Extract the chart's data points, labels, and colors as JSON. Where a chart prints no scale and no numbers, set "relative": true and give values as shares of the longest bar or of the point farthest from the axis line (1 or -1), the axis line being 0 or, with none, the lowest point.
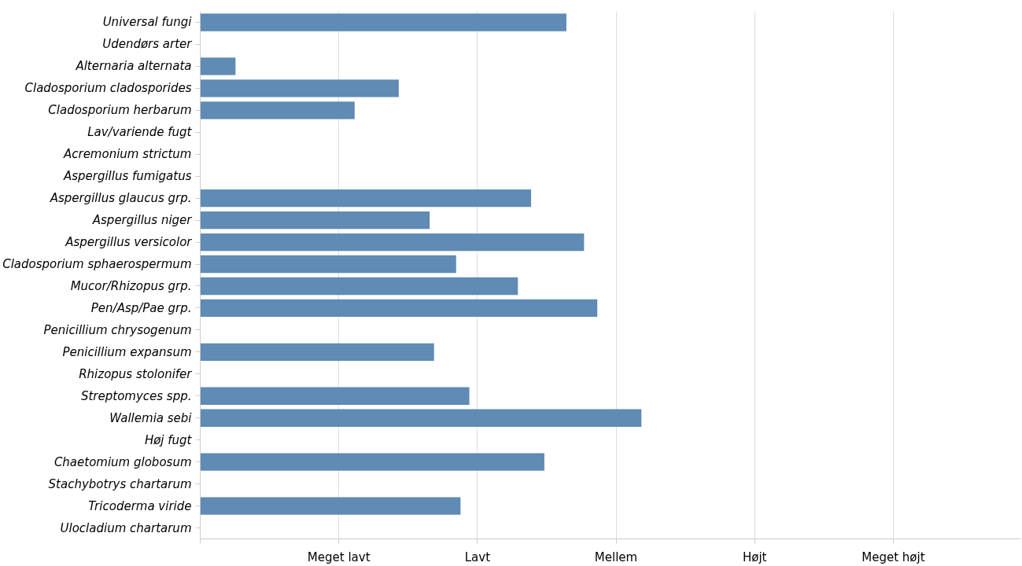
{
  "chart_data": {
    "type": "bar",
    "orientation": "horizontal",
    "relative": true,
    "categories": [
      "Universal fungi",
      "Udendørs arter",
      "Alternaria alternata",
      "Cladosporium cladosporides",
      "Cladosporium herbarum",
      "Lav/variende fugt",
      "Acremonium strictum",
      "Aspergillus fumigatus",
      "Aspergillus glaucus grp.",
      "Aspergillus niger",
      "Aspergillus versicolor",
      "Cladosporium sphaerospermum",
      "Mucor/Rhizopus grp.",
      "Pen/Asp/Pae grp.",
      "Penicillium chrysogenum",
      "Penicillium expansum",
      "Rhizopus stolonifer",
      "Streptomyces spp.",
      "Wallemia sebi",
      "Høj fugt",
      "Chaetomium globosum",
      "Stachybotrys chartarum",
      "Tricoderma viride",
      "Ulocladium chartarum"
    ],
    "values": [
      0.83,
      null,
      0.08,
      0.45,
      0.35,
      null,
      null,
      null,
      0.75,
      0.52,
      0.87,
      0.58,
      0.72,
      0.9,
      null,
      0.53,
      null,
      0.61,
      1,
      null,
      0.78,
      null,
      0.59,
      null
    ],
    "color": "#5f8bb4",
    "annotations": [
      "Meget lavt",
      "Lavt",
      "Mellem",
      "Højt",
      "Meget højt"
    ],
    "grid": "x"
  }
}
